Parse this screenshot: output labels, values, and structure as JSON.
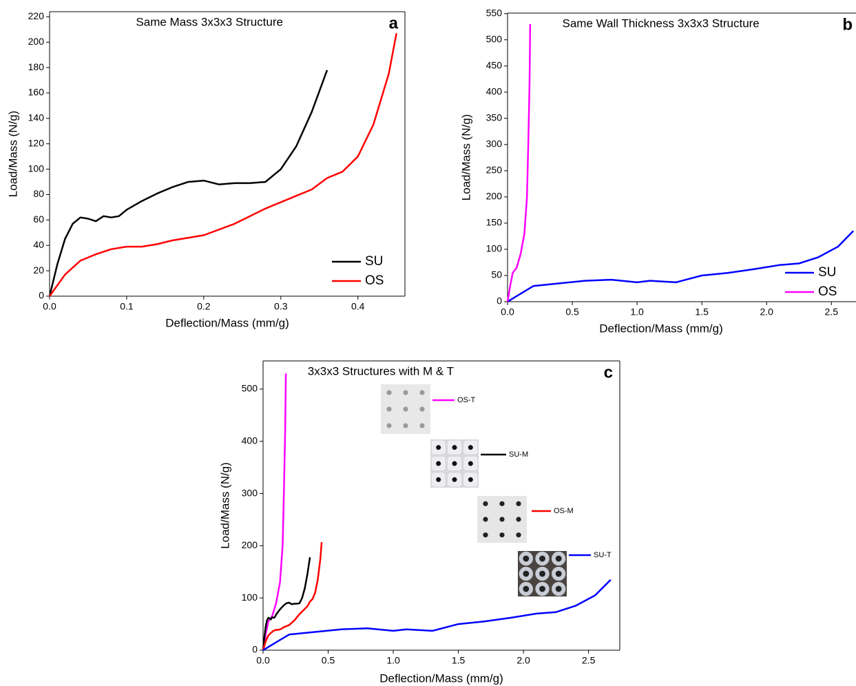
{
  "chart_data": [
    {
      "type": "line",
      "title": "Same Mass 3x3x3 Structure",
      "panel_label": "a",
      "x_label": "Deflection/Mass (mm/g)",
      "y_label": "Load/Mass (N/g)",
      "xlim": [
        0,
        0.461
      ],
      "ylim": [
        0,
        224
      ],
      "xticks": [
        {
          "value": 0,
          "label": "0.0"
        },
        0.1,
        0.2,
        0.3,
        0.4
      ],
      "yticks": [
        0,
        20,
        40,
        60,
        80,
        100,
        120,
        140,
        160,
        180,
        200,
        220
      ],
      "legend": "lower right",
      "series": [
        {
          "name": "SU",
          "color": "#000000",
          "x": [
            0,
            0.01,
            0.02,
            0.03,
            0.04,
            0.05,
            0.06,
            0.07,
            0.08,
            0.09,
            0.1,
            0.12,
            0.14,
            0.16,
            0.18,
            0.2,
            0.22,
            0.24,
            0.26,
            0.28,
            0.3,
            0.32,
            0.34,
            0.36
          ],
          "values": [
            0,
            25,
            45,
            57,
            62,
            61,
            59,
            63,
            62,
            63,
            68,
            75,
            81,
            86,
            90,
            91,
            88,
            89,
            89,
            90,
            100,
            118,
            145,
            178
          ]
        },
        {
          "name": "OS",
          "color": "#ff0000",
          "x": [
            0,
            0.02,
            0.04,
            0.06,
            0.08,
            0.1,
            0.12,
            0.14,
            0.16,
            0.2,
            0.24,
            0.28,
            0.32,
            0.34,
            0.36,
            0.38,
            0.4,
            0.42,
            0.44,
            0.45
          ],
          "values": [
            0,
            17,
            28,
            33,
            37,
            39,
            39,
            41,
            44,
            48,
            57,
            69,
            79,
            84,
            93,
            98,
            110,
            135,
            175,
            207
          ]
        }
      ]
    },
    {
      "type": "line",
      "title": "Same Wall Thickness 3x3x3 Structure",
      "panel_label": "b",
      "x_label": "Deflection/Mass (mm/g)",
      "y_label": "Load/Mass (N/g)",
      "xlim": [
        0,
        2.69
      ],
      "ylim": [
        0,
        551
      ],
      "xticks": [
        {
          "value": 0,
          "label": "0.0"
        },
        0.5,
        {
          "value": 1,
          "label": "1.0"
        },
        1.5,
        {
          "value": 2,
          "label": "2.0"
        },
        2.5
      ],
      "yticks": [
        0,
        50,
        100,
        150,
        200,
        250,
        300,
        350,
        400,
        450,
        500,
        550
      ],
      "legend": "lower right",
      "series": [
        {
          "name": "SU",
          "color": "#0000ff",
          "x": [
            0,
            0.1,
            0.2,
            0.4,
            0.6,
            0.8,
            1.0,
            1.1,
            1.3,
            1.5,
            1.7,
            1.9,
            2.1,
            2.25,
            2.4,
            2.55,
            2.67
          ],
          "values": [
            0,
            15,
            30,
            35,
            40,
            42,
            37,
            40,
            37,
            50,
            55,
            62,
            70,
            73,
            85,
            105,
            135
          ]
        },
        {
          "name": "OS",
          "color": "#ff00ff",
          "x": [
            0,
            0.02,
            0.04,
            0.07,
            0.1,
            0.13,
            0.15,
            0.16,
            0.17,
            0.175
          ],
          "values": [
            0,
            30,
            55,
            65,
            90,
            130,
            200,
            300,
            420,
            530
          ]
        }
      ]
    },
    {
      "type": "line",
      "title": "3x3x3 Structures with M & T",
      "panel_label": "c",
      "x_label": "Deflection/Mass (mm/g)",
      "y_label": "Load/Mass (N/g)",
      "xlim": [
        0,
        2.74
      ],
      "ylim": [
        0,
        554
      ],
      "xticks": [
        {
          "value": 0,
          "label": "0.0"
        },
        0.5,
        {
          "value": 1,
          "label": "1.0"
        },
        1.5,
        {
          "value": 2,
          "label": "2.0"
        },
        2.5
      ],
      "yticks": [
        0,
        100,
        200,
        300,
        400,
        500
      ],
      "series": [
        {
          "name": "OS-T",
          "color": "#ff00ff",
          "x": [
            0,
            0.02,
            0.04,
            0.07,
            0.1,
            0.13,
            0.15,
            0.16,
            0.17,
            0.175
          ],
          "values": [
            0,
            30,
            55,
            65,
            90,
            130,
            200,
            300,
            420,
            530
          ]
        },
        {
          "name": "SU-M",
          "color": "#000000",
          "x": [
            0,
            0.01,
            0.02,
            0.03,
            0.04,
            0.05,
            0.06,
            0.07,
            0.08,
            0.09,
            0.1,
            0.12,
            0.14,
            0.16,
            0.18,
            0.2,
            0.22,
            0.24,
            0.26,
            0.28,
            0.3,
            0.32,
            0.34,
            0.36
          ],
          "values": [
            0,
            25,
            45,
            57,
            62,
            61,
            59,
            63,
            62,
            63,
            68,
            75,
            81,
            86,
            90,
            91,
            88,
            89,
            89,
            90,
            100,
            118,
            145,
            178
          ]
        },
        {
          "name": "OS-M",
          "color": "#ff0000",
          "x": [
            0,
            0.02,
            0.04,
            0.06,
            0.08,
            0.1,
            0.12,
            0.14,
            0.16,
            0.2,
            0.24,
            0.28,
            0.32,
            0.34,
            0.36,
            0.38,
            0.4,
            0.42,
            0.44,
            0.45
          ],
          "values": [
            0,
            17,
            28,
            33,
            37,
            39,
            39,
            41,
            44,
            48,
            57,
            69,
            79,
            84,
            93,
            98,
            110,
            135,
            175,
            207
          ]
        },
        {
          "name": "SU-T",
          "color": "#0000ff",
          "x": [
            0,
            0.1,
            0.2,
            0.4,
            0.6,
            0.8,
            1.0,
            1.1,
            1.3,
            1.5,
            1.7,
            1.9,
            2.1,
            2.25,
            2.4,
            2.55,
            2.67
          ],
          "values": [
            0,
            15,
            30,
            35,
            40,
            42,
            37,
            40,
            37,
            50,
            55,
            62,
            70,
            73,
            85,
            105,
            135
          ]
        }
      ]
    }
  ]
}
